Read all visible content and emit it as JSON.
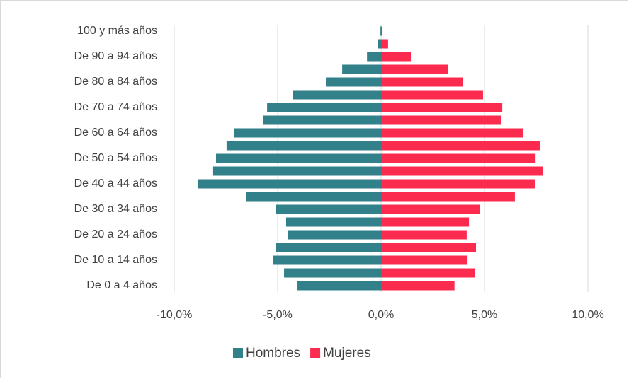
{
  "chart_data": {
    "type": "bar",
    "orientation": "horizontal",
    "categories": [
      "De 0 a 4 años",
      null,
      "De 10 a 14 años",
      null,
      "De 20 a 24 años",
      null,
      "De 30 a 34 años",
      null,
      "De 40 a 44 años",
      null,
      "De 50 a 54 años",
      null,
      "De 60 a 64 años",
      null,
      "De 70 a 74 años",
      null,
      "De 80 a 84 años",
      null,
      "De 90 a 94 años",
      null,
      "100 y más años"
    ],
    "series": [
      {
        "name": "Hombres",
        "color": "#31808a",
        "values": [
          -4.04,
          -4.69,
          -5.21,
          -5.07,
          -4.52,
          -4.59,
          -5.07,
          -6.54,
          -8.84,
          -8.12,
          -7.98,
          -7.47,
          -7.09,
          -5.72,
          -5.51,
          -4.28,
          -2.67,
          -1.88,
          -0.68,
          -0.14,
          -0.03
        ]
      },
      {
        "name": "Mujeres",
        "color": "#fb2a4f",
        "values": [
          3.55,
          4.55,
          4.18,
          4.59,
          4.14,
          4.25,
          4.76,
          6.47,
          7.43,
          7.84,
          7.47,
          7.67,
          6.88,
          5.82,
          5.86,
          4.93,
          3.94,
          3.22,
          1.44,
          0.34,
          0.07
        ]
      }
    ],
    "xlim": [
      -10,
      10
    ],
    "xticks": [
      {
        "value": -10,
        "label": "-10,0%"
      },
      {
        "value": -5,
        "label": "-5,0%"
      },
      {
        "value": 0,
        "label": "0,0%"
      },
      {
        "value": 5,
        "label": "5,0%"
      },
      {
        "value": 10,
        "label": "10,0%"
      }
    ],
    "grid": true,
    "legend": "bottom"
  }
}
